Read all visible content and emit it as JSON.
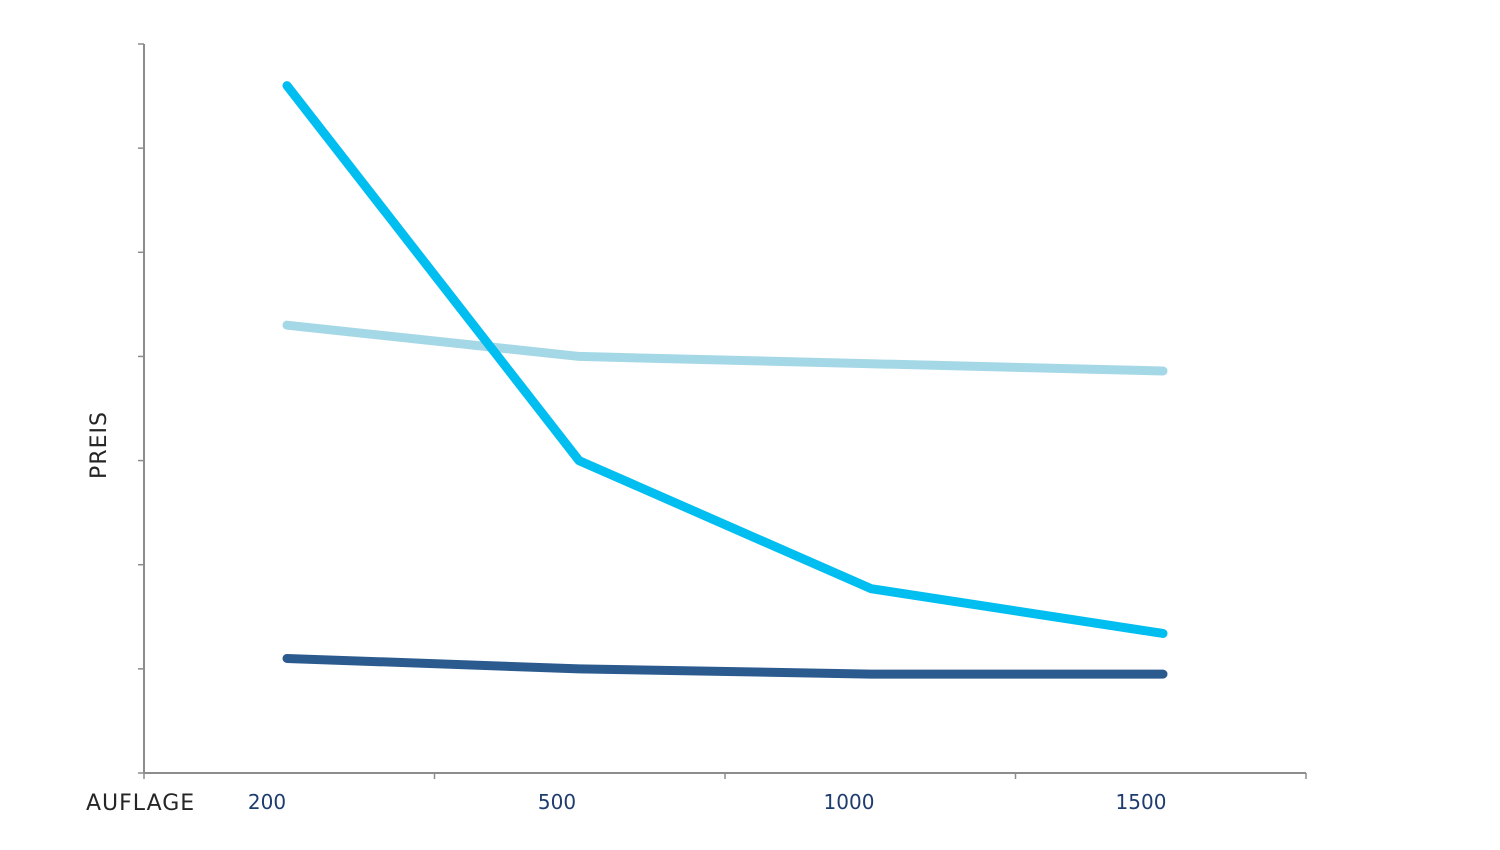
{
  "chart_data": {
    "type": "line",
    "xlabel": "AUFLAGE",
    "ylabel": "PREIS",
    "categories": [
      "200",
      "500",
      "1000",
      "1500"
    ],
    "ylim": [
      0,
      7
    ],
    "grid": false,
    "legend": "none",
    "series": [
      {
        "values": [
          4.3,
          4.0,
          3.93,
          3.86
        ],
        "color": "#a5d8e6"
      },
      {
        "values": [
          6.6,
          3.0,
          1.77,
          1.34
        ],
        "color": "#00bef0"
      },
      {
        "values": [
          1.1,
          1.0,
          0.95,
          0.95
        ],
        "color": "#2b5a8e"
      }
    ],
    "colors": {
      "axis": "#8c8c8c",
      "tick_label": "#1f3c6e",
      "axis_title": "#262626"
    }
  }
}
